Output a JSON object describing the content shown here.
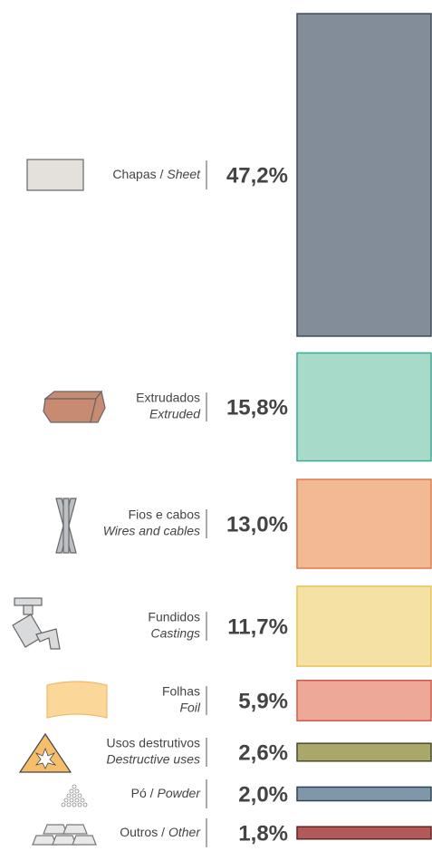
{
  "chart_data": {
    "type": "bar",
    "categories": [
      {
        "pt": "Chapas /",
        "en": "Sheet"
      },
      {
        "pt": "Extrudados",
        "en": "Extruded"
      },
      {
        "pt": "Fios e cabos",
        "en": "Wires and cables"
      },
      {
        "pt": "Fundidos",
        "en": "Castings"
      },
      {
        "pt": "Folhas",
        "en": "Foil"
      },
      {
        "pt": "Usos destrutivos",
        "en": "Destructive uses"
      },
      {
        "pt": "Pó /",
        "en": "Powder"
      },
      {
        "pt": "Outros /",
        "en": "Other"
      }
    ],
    "values": [
      47.2,
      15.8,
      13.0,
      11.7,
      5.9,
      2.6,
      2.0,
      1.8
    ],
    "value_labels": [
      "47,2%",
      "15,8%",
      "13,0%",
      "11,7%",
      "5,9%",
      "2,6%",
      "2,0%",
      "1,8%"
    ],
    "colors": [
      "#838d99",
      "#a8dac9",
      "#f2b995",
      "#f5e1a4",
      "#eea898",
      "#a9a86a",
      "#7e98aa",
      "#b05a5a"
    ],
    "edge_colors": [
      "#3d4a5a",
      "#3aaa96",
      "#e07a4a",
      "#e8c455",
      "#d45a48",
      "#4a4a2a",
      "#2e4456",
      "#6a2020"
    ]
  }
}
